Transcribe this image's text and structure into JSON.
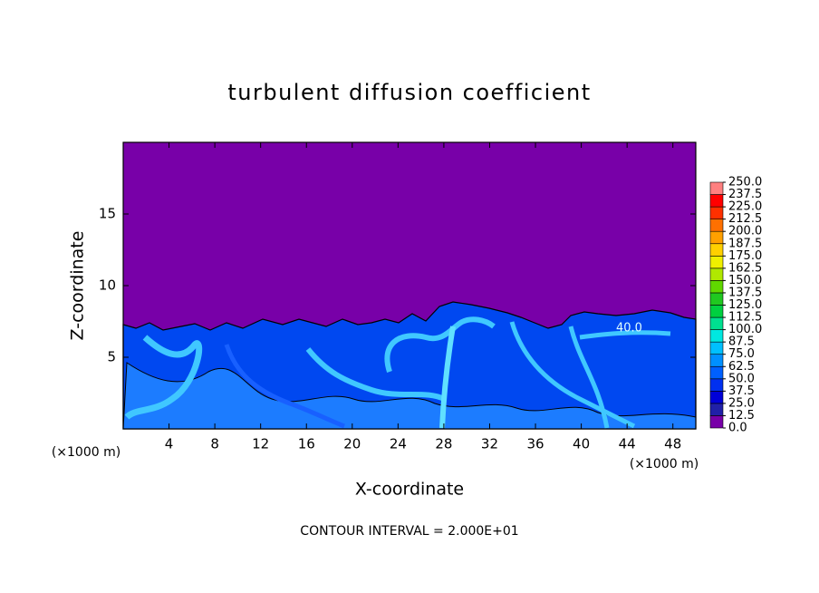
{
  "chart_data": {
    "type": "contour",
    "title": "turbulent diffusion coefficient",
    "x_label": "X-coordinate",
    "y_label": "Z-coordinate",
    "x_unit_labels": [
      "(×1000 m)",
      "(×1000 m)"
    ],
    "footnote": "CONTOUR INTERVAL = 2.000E+01",
    "annotations": [
      "40.0"
    ],
    "xlim": [
      0,
      50
    ],
    "xticks": [
      4,
      8,
      12,
      16,
      20,
      24,
      28,
      32,
      36,
      40,
      44,
      48
    ],
    "ylim": [
      0,
      20
    ],
    "yticks": [
      5,
      10,
      15
    ],
    "colorbar": {
      "lim": [
        0,
        250
      ],
      "ticks": [
        {
          "value": 0,
          "label": "0.0"
        },
        {
          "value": 12.5,
          "label": "12.5"
        },
        {
          "value": 25,
          "label": "25.0"
        },
        {
          "value": 37.5,
          "label": "37.5"
        },
        {
          "value": 50,
          "label": "50.0"
        },
        {
          "value": 62.5,
          "label": "62.5"
        },
        {
          "value": 75,
          "label": "75.0"
        },
        {
          "value": 87.5,
          "label": "87.5"
        },
        {
          "value": 100,
          "label": "100.0"
        },
        {
          "value": 112.5,
          "label": "112.5"
        },
        {
          "value": 125,
          "label": "125.0"
        },
        {
          "value": 137.5,
          "label": "137.5"
        },
        {
          "value": 150,
          "label": "150.0"
        },
        {
          "value": 162.5,
          "label": "162.5"
        },
        {
          "value": 175,
          "label": "175.0"
        },
        {
          "value": 187.5,
          "label": "187.5"
        },
        {
          "value": 200,
          "label": "200.0"
        },
        {
          "value": 212.5,
          "label": "212.5"
        },
        {
          "value": 225,
          "label": "225.0"
        },
        {
          "value": 237.5,
          "label": "237.5"
        },
        {
          "value": 250,
          "label": "250.0"
        }
      ],
      "colors": [
        "#7800a8",
        "#2020a8",
        "#0000d8",
        "#0030f0",
        "#0060ff",
        "#0090ff",
        "#00c0ff",
        "#00e8e0",
        "#00e090",
        "#00d040",
        "#20c820",
        "#60d800",
        "#b0e800",
        "#f0f000",
        "#ffd000",
        "#ffa000",
        "#ff7000",
        "#ff3000",
        "#ff0000",
        "#ff8080"
      ]
    }
  }
}
